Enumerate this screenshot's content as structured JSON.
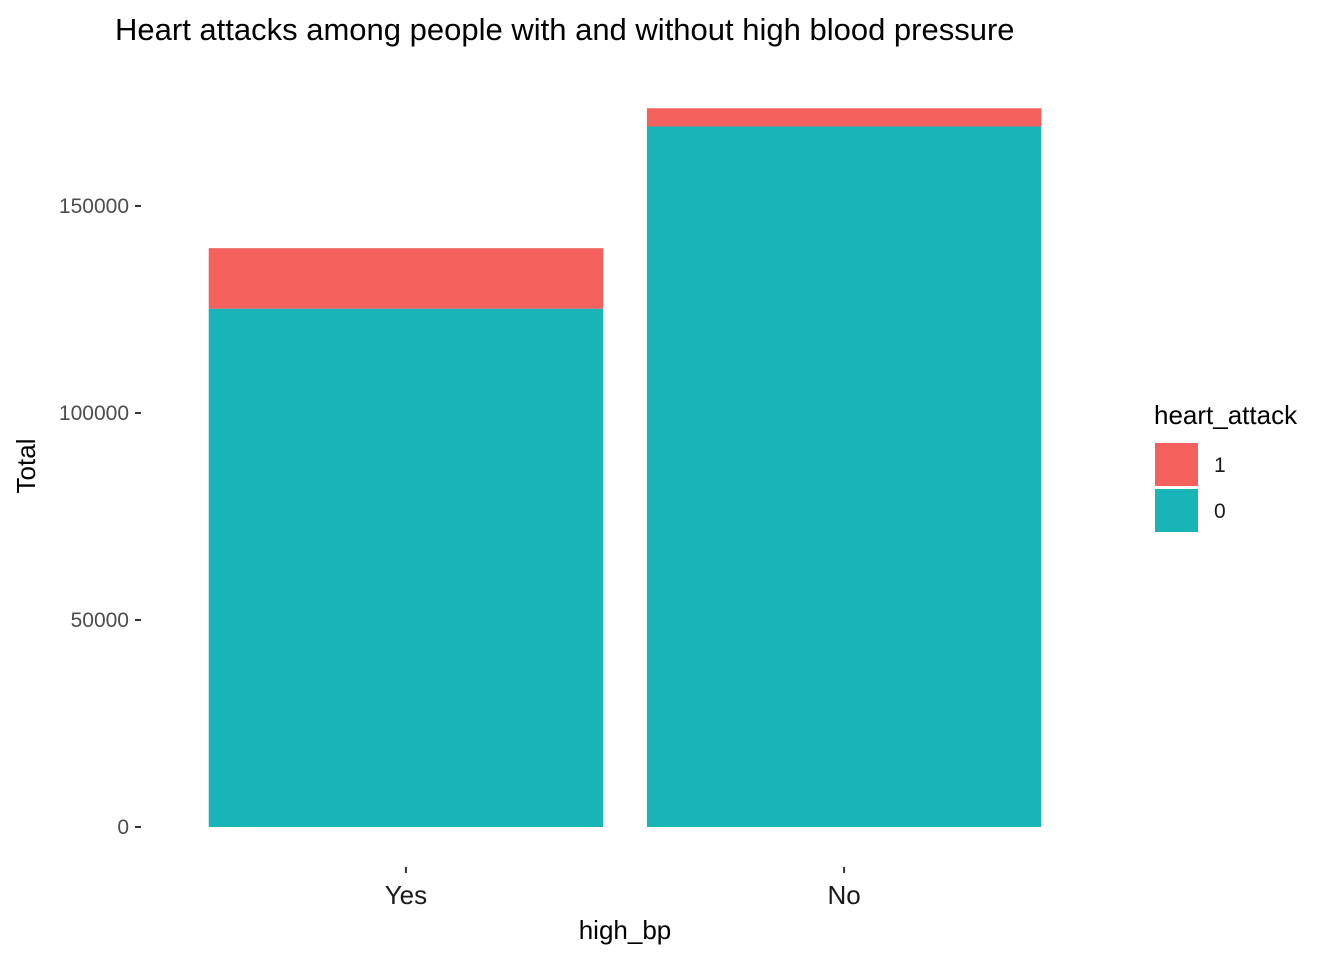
{
  "chart_data": {
    "type": "bar",
    "stacked": true,
    "title": "Heart attacks among people with and without high blood pressure",
    "xlabel": "high_bp",
    "ylabel": "Total",
    "categories": [
      "Yes",
      "No"
    ],
    "series": [
      {
        "name": "0",
        "color": "#19B4B8",
        "values": [
          125200,
          169200
        ]
      },
      {
        "name": "1",
        "color": "#F4605B",
        "values": [
          14600,
          4400
        ]
      }
    ],
    "legend_title": "heart_attack",
    "legend_order": [
      "1",
      "0"
    ],
    "legend_position": "right",
    "yticks": [
      0,
      50000,
      100000,
      150000
    ],
    "ytick_labels": [
      "0",
      "50000",
      "100000",
      "150000"
    ],
    "ylim": [
      -8700,
      182600
    ],
    "grid": false,
    "background": "#ffffff"
  }
}
